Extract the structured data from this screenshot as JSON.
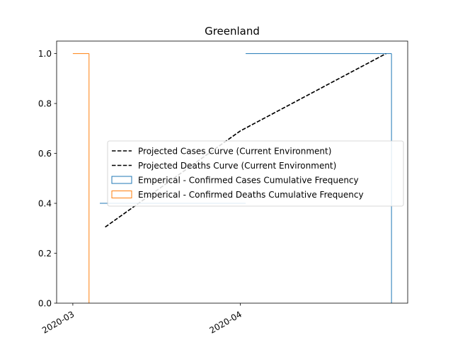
{
  "chart_data": {
    "type": "line",
    "title": "Greenland",
    "xlabel": "",
    "ylabel": "",
    "x_axis": {
      "type": "date",
      "range": [
        "2020-02-27",
        "2020-05-02"
      ],
      "ticks": [
        {
          "value": "2020-03-01",
          "label": "2020-03"
        },
        {
          "value": "2020-04-01",
          "label": "2020-04"
        }
      ],
      "tick_label_rotation_deg": 30
    },
    "y_axis": {
      "range": [
        0,
        1.05
      ],
      "ticks": [
        {
          "value": 0.0,
          "label": "0.0"
        },
        {
          "value": 0.2,
          "label": "0.2"
        },
        {
          "value": 0.4,
          "label": "0.4"
        },
        {
          "value": 0.6,
          "label": "0.6"
        },
        {
          "value": 0.8,
          "label": "0.8"
        },
        {
          "value": 1.0,
          "label": "1.0"
        }
      ]
    },
    "grid": false,
    "legend": {
      "placement": "center-right"
    },
    "series": [
      {
        "name": "Projected Cases Curve (Current Environment)",
        "kind": "line",
        "style": "dashed",
        "color": "#000000",
        "points": [
          {
            "x": "2020-03-07",
            "y": 0.305
          },
          {
            "x": "2020-04-01",
            "y": 0.69
          },
          {
            "x": "2020-04-28",
            "y": 1.0
          }
        ]
      },
      {
        "name": "Projected Deaths Curve (Current Environment)",
        "kind": "line",
        "style": "dashed",
        "color": "#000000",
        "points": [
          {
            "x": "2020-03-07",
            "y": 0.305
          },
          {
            "x": "2020-04-01",
            "y": 0.69
          },
          {
            "x": "2020-04-28",
            "y": 1.0
          }
        ]
      },
      {
        "name": "Emperical - Confirmed Cases Cumulative Frequency",
        "kind": "step-histogram",
        "color": "#1f77b4",
        "steps": [
          {
            "x": "2020-02-27",
            "y": 0.0
          },
          {
            "x": "2020-03-06",
            "y": 0.4
          },
          {
            "x": "2020-04-02",
            "y": 1.0
          },
          {
            "x": "2020-04-29",
            "y": 0.0
          }
        ],
        "end": "2020-04-29"
      },
      {
        "name": "Emperical - Confirmed Deaths Cumulative Frequency",
        "kind": "step-histogram",
        "color": "#ff7f0e",
        "steps": [
          {
            "x": "2020-02-27",
            "y": 0.0
          },
          {
            "x": "2020-03-01",
            "y": 1.0
          },
          {
            "x": "2020-03-04",
            "y": 0.0
          }
        ],
        "end": "2020-03-04"
      }
    ]
  }
}
